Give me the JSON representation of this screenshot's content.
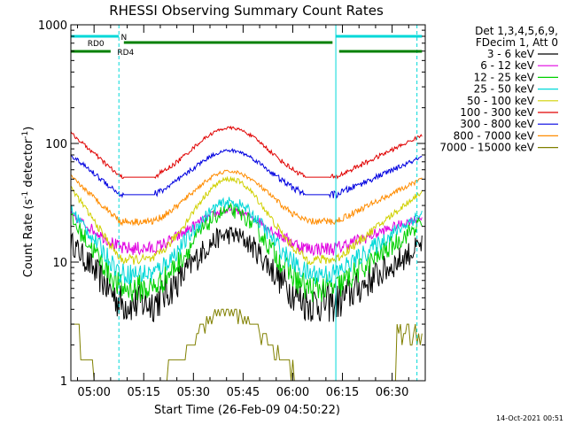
{
  "chart_data": {
    "type": "line",
    "title": "RHESSI Observing Summary Count Rates",
    "xlabel": "Start Time (26-Feb-09 04:50:22)",
    "ylabel_main": "Count Rate (s",
    "ylabel_sup1": "-1",
    "ylabel_mid": " detector",
    "ylabel_sup2": "-1",
    "ylabel_end": ")",
    "y_scale": "log",
    "ylim": [
      1,
      1000
    ],
    "xlim_minutes": [
      -7,
      100
    ],
    "x_ticks": [
      {
        "m": 0,
        "label": "05:00"
      },
      {
        "m": 15,
        "label": "05:15"
      },
      {
        "m": 30,
        "label": "05:30"
      },
      {
        "m": 45,
        "label": "05:45"
      },
      {
        "m": 60,
        "label": "06:00"
      },
      {
        "m": 75,
        "label": "06:15"
      },
      {
        "m": 90,
        "label": "06:30"
      }
    ],
    "y_ticks": [
      {
        "v": 1,
        "label": "1"
      },
      {
        "v": 10,
        "label": "10"
      },
      {
        "v": 100,
        "label": "100"
      },
      {
        "v": 1000,
        "label": "1000"
      }
    ],
    "legend_header": [
      "Det 1,3,4,5,6,9,",
      "FDecim 1, Att 0"
    ],
    "legend_position": "right",
    "series": [
      {
        "name": "3 - 6 keV",
        "color": "#000000",
        "min": 4.5,
        "max": 17,
        "flat": null,
        "noise": 0.28
      },
      {
        "name": "6 - 12 keV",
        "color": "#e000e0",
        "min": 13,
        "max": 27,
        "flat": null,
        "noise": 0.1
      },
      {
        "name": "12 - 25 keV",
        "color": "#00d000",
        "min": 6,
        "max": 27,
        "flat": null,
        "noise": 0.2
      },
      {
        "name": "25 - 50 keV",
        "color": "#00d8d8",
        "min": 8,
        "max": 32,
        "flat": null,
        "noise": 0.15
      },
      {
        "name": "50 - 100 keV",
        "color": "#d0d000",
        "min": 10.5,
        "max": 50,
        "flat": null,
        "noise": 0.07
      },
      {
        "name": "100 - 300 keV",
        "color": "#e00000",
        "min": 52,
        "max": 135,
        "flat": 52,
        "noise": 0.04
      },
      {
        "name": "300 - 800 keV",
        "color": "#0000e0",
        "min": 37,
        "max": 87,
        "flat": 37,
        "noise": 0.05
      },
      {
        "name": "800 - 7000 keV",
        "color": "#ff8c00",
        "min": 22,
        "max": 58,
        "flat": null,
        "noise": 0.05
      },
      {
        "name": "7000 - 15000 keV",
        "color": "#808000",
        "min": 1,
        "max": 4,
        "flat": null,
        "noise": 0.0
      }
    ],
    "series_x_range_minutes": [
      -7,
      99
    ],
    "saa_vlines_minutes": [
      -7,
      73
    ],
    "night_vlines_minutes": [
      7.5,
      97.5
    ],
    "flags": {
      "cyan_label": "N",
      "rd0_label": "RD0",
      "rd4_label": "RD4"
    },
    "timestamp": "14-Oct-2021 00:51",
    "background": "#ffffff"
  }
}
